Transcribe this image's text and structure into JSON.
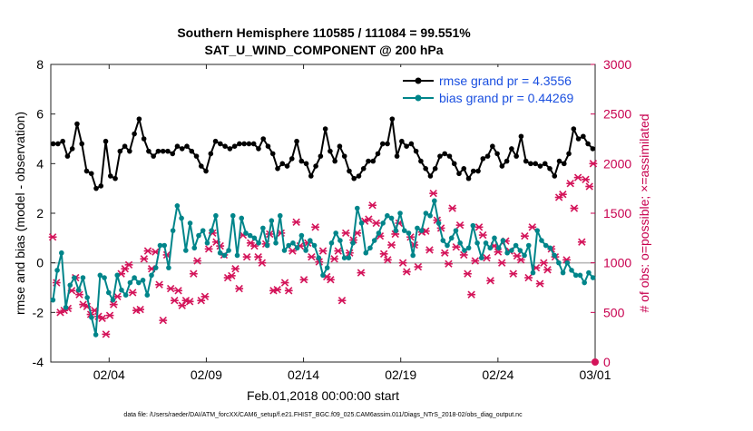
{
  "chart_data": {
    "type": "line",
    "title_line1": "Southern Hemisphere 110585 / 111084 = 99.551%",
    "title_line2": "SAT_U_WIND_COMPONENT @ 200 hPa",
    "ylabel_left": "rmse and bias (model - observation)",
    "ylabel_right": "# of obs: o=possible; ×=assimilated",
    "xlabel": "Feb.01,2018 00:00:00 start",
    "footnote": "data file: /Users/raeder/DAI/ATM_forcXX/CAM6_setup/f.e21.FHIST_BGC.f09_025.CAM6assim.011/Diags_NTrS_2018-02/obs_diag_output.nc",
    "ylim_left": [
      -4,
      8
    ],
    "ylim_right": [
      0,
      3000
    ],
    "xlim": [
      0,
      28
    ],
    "left_ticks": [
      "-4",
      "-2",
      "0",
      "2",
      "4",
      "6",
      "8"
    ],
    "right_ticks": [
      "0",
      "500",
      "1000",
      "1500",
      "2000",
      "2500",
      "3000"
    ],
    "x_ticks": [
      {
        "day": 3,
        "label": "02/04"
      },
      {
        "day": 8,
        "label": "02/09"
      },
      {
        "day": 13,
        "label": "02/14"
      },
      {
        "day": 18,
        "label": "02/19"
      },
      {
        "day": 23,
        "label": "02/24"
      },
      {
        "day": 28,
        "label": "03/01"
      }
    ],
    "series": [
      {
        "name": "rmse grand pr = 4.3556",
        "color": "#000000",
        "axis": "left",
        "values": [
          4.8,
          4.8,
          4.9,
          4.3,
          4.6,
          5.6,
          4.8,
          3.7,
          3.6,
          3.0,
          3.1,
          4.9,
          3.5,
          3.4,
          4.5,
          4.7,
          4.5,
          5.2,
          5.8,
          5.0,
          4.5,
          4.3,
          4.5,
          4.5,
          4.5,
          4.4,
          4.7,
          4.6,
          4.7,
          4.5,
          4.3,
          3.9,
          3.7,
          4.4,
          4.9,
          4.8,
          4.7,
          4.6,
          4.7,
          4.8,
          4.8,
          4.8,
          4.8,
          4.6,
          5.0,
          4.7,
          4.4,
          3.8,
          4.0,
          3.9,
          4.2,
          4.9,
          4.1,
          4.0,
          3.5,
          3.9,
          4.3,
          5.4,
          4.5,
          4.1,
          4.7,
          4.3,
          3.7,
          3.4,
          3.5,
          3.8,
          4.1,
          4.1,
          4.4,
          4.8,
          4.8,
          5.8,
          4.3,
          4.9,
          4.7,
          4.8,
          4.5,
          4.1,
          3.8,
          3.5,
          3.8,
          4.3,
          4.4,
          4.3,
          4.0,
          3.6,
          3.8,
          3.4,
          3.7,
          3.7,
          4.2,
          4.3,
          4.7,
          4.4,
          3.9,
          4.1,
          4.6,
          4.3,
          5.1,
          4.1,
          4.0,
          4.0,
          3.9,
          4.0,
          3.8,
          3.5,
          4.1,
          4.0,
          4.4,
          5.4,
          5.0,
          5.1,
          4.8,
          4.6
        ],
        "rmse_marker": "filled-circle"
      },
      {
        "name": "bias grand pr = 0.44269",
        "color": "#00858a",
        "axis": "left",
        "values": [
          -1.5,
          -0.3,
          0.4,
          -1.8,
          -0.9,
          -0.6,
          -1.1,
          -0.6,
          -1.4,
          -2.2,
          -2.9,
          -0.5,
          -0.6,
          -1.2,
          -1.5,
          -0.5,
          -1.1,
          -1.3,
          -0.8,
          -0.6,
          -0.8,
          -0.7,
          -1.3,
          -0.5,
          -0.2,
          0.7,
          0.7,
          -0.2,
          1.3,
          2.3,
          1.8,
          0.5,
          1.6,
          0.6,
          1.1,
          1.3,
          0.8,
          1.3,
          1.9,
          0.4,
          0.3,
          0.5,
          1.9,
          0.3,
          1.8,
          1.2,
          1.1,
          1.0,
          0.8,
          1.4,
          0.7,
          1.7,
          0.8,
          1.9,
          0.5,
          0.7,
          0.8,
          0.6,
          1.1,
          0.5,
          0.9,
          0.7,
          0.2,
          -0.5,
          -0.2,
          0.8,
          1.2,
          0.9,
          0.2,
          0.2,
          0.8,
          2.2,
          1.6,
          0.4,
          0.6,
          0.9,
          1.2,
          1.6,
          1.9,
          1.8,
          1.3,
          2.0,
          1.3,
          1.2,
          0.3,
          1.4,
          1.3,
          2.0,
          1.9,
          2.5,
          1.6,
          0.9,
          0.7,
          1.0,
          1.3,
          0.8,
          0.5,
          0.6,
          1.5,
          0.8,
          0.2,
          0.8,
          0.6,
          1.0,
          0.6,
          0.9,
          0.4,
          0.5,
          0.7,
          0.5,
          0.3,
          0.7,
          -0.4,
          1.3,
          0.9,
          0.7,
          0.6,
          0.3,
          0.0,
          -0.4,
          0.0,
          -0.3,
          -0.5,
          -0.5,
          -0.8,
          -0.4,
          -0.6
        ]
      },
      {
        "name": "# of obs assimilated",
        "color": "#d4145a",
        "axis": "right",
        "values": [
          1260,
          800,
          500,
          520,
          540,
          720,
          850,
          680,
          580,
          560,
          480,
          520,
          460,
          440,
          280,
          470,
          580,
          660,
          890,
          940,
          980,
          700,
          520,
          530,
          1040,
          1120,
          940,
          1110,
          780,
          420,
          1080,
          740,
          620,
          720,
          570,
          620,
          610,
          890,
          1020,
          620,
          660,
          1140,
          1300,
          1210,
          1170,
          1080,
          850,
          870,
          940,
          740,
          1280,
          1060,
          1200,
          1170,
          1060,
          1000,
          1190,
          1290,
          720,
          730,
          1300,
          800,
          720,
          1120,
          1410,
          1170,
          830,
          1200,
          1060,
          1360,
          1010,
          1120,
          860,
          830,
          1040,
          1120,
          620,
          1300,
          1100,
          1230,
          1300,
          900,
          1420,
          1440,
          1580,
          1400,
          1270,
          1090,
          1030,
          1180,
          1290,
          1400,
          1000,
          910,
          1260,
          1180,
          960,
          1310,
          1320,
          1130,
          1700,
          1430,
          1350,
          1100,
          990,
          1550,
          1160,
          1380,
          1080,
          890,
          680,
          1020,
          1360,
          1280,
          1050,
          820,
          1170,
          1110,
          1000,
          1220,
          1120,
          890,
          1070,
          1030,
          1270,
          850,
          1360,
          950,
          790,
          1000,
          930,
          1140,
          1060,
          1660,
          1690,
          1030,
          1800,
          1550,
          1860,
          1210,
          1840,
          1770,
          2000
        ]
      }
    ],
    "zero_line": true,
    "legend_position": "top-right"
  }
}
